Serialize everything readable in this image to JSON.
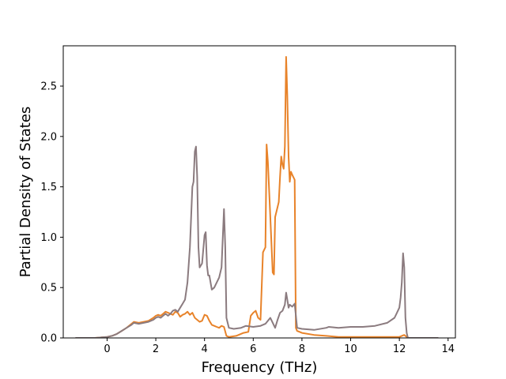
{
  "chart_data": {
    "type": "line",
    "xlabel": "Frequency (THz)",
    "ylabel": "Partial Density of States",
    "xlim": [
      -1.8,
      14.3
    ],
    "ylim": [
      0,
      2.9
    ],
    "xticks": [
      0,
      2,
      4,
      6,
      8,
      10,
      12,
      14
    ],
    "xtick_labels": [
      "0",
      "2",
      "4",
      "6",
      "8",
      "10",
      "12",
      "14"
    ],
    "yticks": [
      0,
      0.5,
      1.0,
      1.5,
      2.0,
      2.5
    ],
    "ytick_labels": [
      "0.0",
      "0.5",
      "1.0",
      "1.5",
      "2.0",
      "2.5"
    ],
    "grid": false,
    "series": [
      {
        "color": "#e8832a",
        "x": [
          -1.3,
          -0.5,
          0,
          0.2,
          0.4,
          0.6,
          0.8,
          1.0,
          1.1,
          1.3,
          1.5,
          1.7,
          1.9,
          2.0,
          2.1,
          2.2,
          2.3,
          2.4,
          2.5,
          2.6,
          2.7,
          2.8,
          2.9,
          3.0,
          3.1,
          3.2,
          3.3,
          3.4,
          3.5,
          3.6,
          3.7,
          3.8,
          3.9,
          4.0,
          4.1,
          4.2,
          4.3,
          4.4,
          4.5,
          4.6,
          4.7,
          4.8,
          4.9,
          5.0,
          5.3,
          5.6,
          5.8,
          5.9,
          6.0,
          6.1,
          6.2,
          6.3,
          6.4,
          6.5,
          6.55,
          6.6,
          6.7,
          6.8,
          6.85,
          6.9,
          7.0,
          7.05,
          7.1,
          7.15,
          7.2,
          7.25,
          7.3,
          7.35,
          7.4,
          7.45,
          7.5,
          7.55,
          7.6,
          7.7,
          7.75,
          7.8,
          8.0,
          8.5,
          9.0,
          9.5,
          10.0,
          11.0,
          12.0,
          12.1,
          12.2,
          12.3,
          12.4,
          13.6
        ],
        "y": [
          0,
          0,
          0.01,
          0.02,
          0.04,
          0.07,
          0.1,
          0.14,
          0.16,
          0.15,
          0.16,
          0.17,
          0.2,
          0.22,
          0.23,
          0.22,
          0.24,
          0.26,
          0.25,
          0.24,
          0.23,
          0.26,
          0.25,
          0.21,
          0.23,
          0.24,
          0.26,
          0.23,
          0.25,
          0.2,
          0.18,
          0.16,
          0.17,
          0.23,
          0.22,
          0.17,
          0.13,
          0.12,
          0.11,
          0.1,
          0.12,
          0.11,
          0.02,
          0.01,
          0.02,
          0.05,
          0.06,
          0.22,
          0.25,
          0.27,
          0.2,
          0.18,
          0.85,
          0.9,
          1.92,
          1.75,
          1.2,
          0.65,
          0.63,
          1.2,
          1.3,
          1.35,
          1.6,
          1.8,
          1.72,
          1.68,
          1.9,
          2.79,
          2.4,
          1.8,
          1.55,
          1.65,
          1.62,
          1.57,
          0.1,
          0.07,
          0.05,
          0.03,
          0.02,
          0.01,
          0.01,
          0.01,
          0.01,
          0.02,
          0.03,
          0.01,
          0.0,
          0.0
        ]
      },
      {
        "color": "#8b7b7f",
        "x": [
          -1.3,
          -0.5,
          0,
          0.2,
          0.4,
          0.6,
          0.8,
          1.0,
          1.1,
          1.3,
          1.5,
          1.7,
          1.9,
          2.0,
          2.1,
          2.2,
          2.3,
          2.4,
          2.5,
          2.6,
          2.7,
          2.8,
          2.9,
          3.0,
          3.1,
          3.2,
          3.3,
          3.4,
          3.5,
          3.55,
          3.6,
          3.65,
          3.7,
          3.75,
          3.8,
          3.9,
          4.0,
          4.05,
          4.1,
          4.15,
          4.2,
          4.3,
          4.4,
          4.5,
          4.6,
          4.7,
          4.75,
          4.8,
          4.85,
          4.9,
          5.0,
          5.2,
          5.5,
          5.7,
          6.0,
          6.3,
          6.5,
          6.7,
          6.9,
          7.0,
          7.1,
          7.2,
          7.3,
          7.35,
          7.4,
          7.45,
          7.5,
          7.6,
          7.7,
          7.8,
          8.0,
          8.5,
          9.0,
          9.1,
          9.5,
          10.0,
          10.5,
          11.0,
          11.5,
          11.8,
          11.9,
          12.0,
          12.05,
          12.1,
          12.15,
          12.2,
          12.25,
          12.3,
          12.35,
          13.6
        ],
        "y": [
          0,
          0,
          0.01,
          0.02,
          0.04,
          0.07,
          0.1,
          0.13,
          0.15,
          0.14,
          0.15,
          0.16,
          0.18,
          0.2,
          0.21,
          0.2,
          0.22,
          0.24,
          0.22,
          0.24,
          0.27,
          0.28,
          0.26,
          0.3,
          0.34,
          0.38,
          0.55,
          0.9,
          1.5,
          1.55,
          1.85,
          1.9,
          1.6,
          0.9,
          0.7,
          0.74,
          1.02,
          1.05,
          0.72,
          0.62,
          0.62,
          0.48,
          0.5,
          0.55,
          0.6,
          0.7,
          1.0,
          1.28,
          0.9,
          0.2,
          0.1,
          0.09,
          0.1,
          0.12,
          0.11,
          0.12,
          0.14,
          0.2,
          0.1,
          0.18,
          0.25,
          0.27,
          0.33,
          0.45,
          0.38,
          0.3,
          0.33,
          0.31,
          0.34,
          0.1,
          0.09,
          0.08,
          0.1,
          0.11,
          0.1,
          0.11,
          0.11,
          0.12,
          0.15,
          0.2,
          0.25,
          0.3,
          0.4,
          0.55,
          0.84,
          0.7,
          0.2,
          0.05,
          0.0,
          0.0
        ]
      }
    ]
  }
}
